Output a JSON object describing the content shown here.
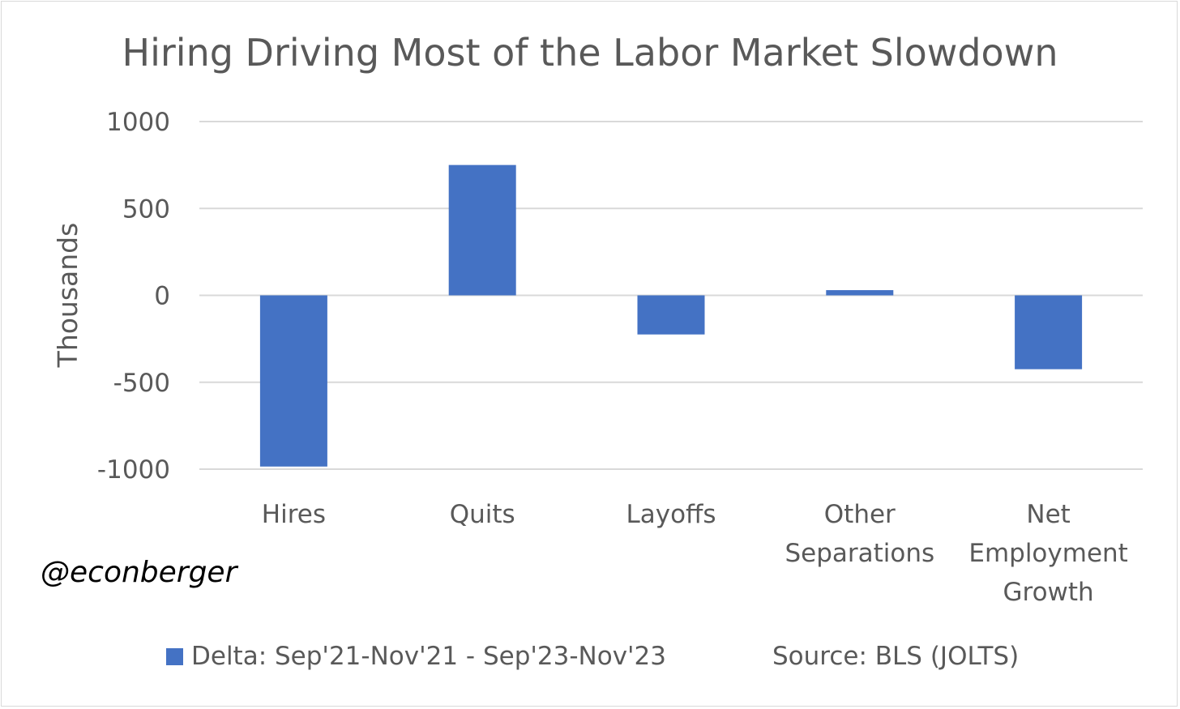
{
  "chart_data": {
    "type": "bar",
    "title": "Hiring Driving Most of the Labor Market Slowdown",
    "ylabel": "Thousands",
    "xlabel": "",
    "categories": [
      [
        "Hires"
      ],
      [
        "Quits"
      ],
      [
        "Layoffs"
      ],
      [
        "Other",
        "Separations"
      ],
      [
        "Net",
        "Employment",
        "Growth"
      ]
    ],
    "series": [
      {
        "name": "Delta: Sep'21-Nov'21 - Sep'23-Nov'23",
        "values": [
          -985,
          750,
          -225,
          30,
          -425
        ],
        "color": "#4472c4"
      }
    ],
    "ylim": [
      -1000,
      1000
    ],
    "yticks": [
      1000,
      500,
      0,
      -500,
      -1000
    ],
    "grid": true,
    "legend_position": "bottom-left"
  },
  "annotations": {
    "handle": "@econberger",
    "source": "Source: BLS (JOLTS)"
  }
}
